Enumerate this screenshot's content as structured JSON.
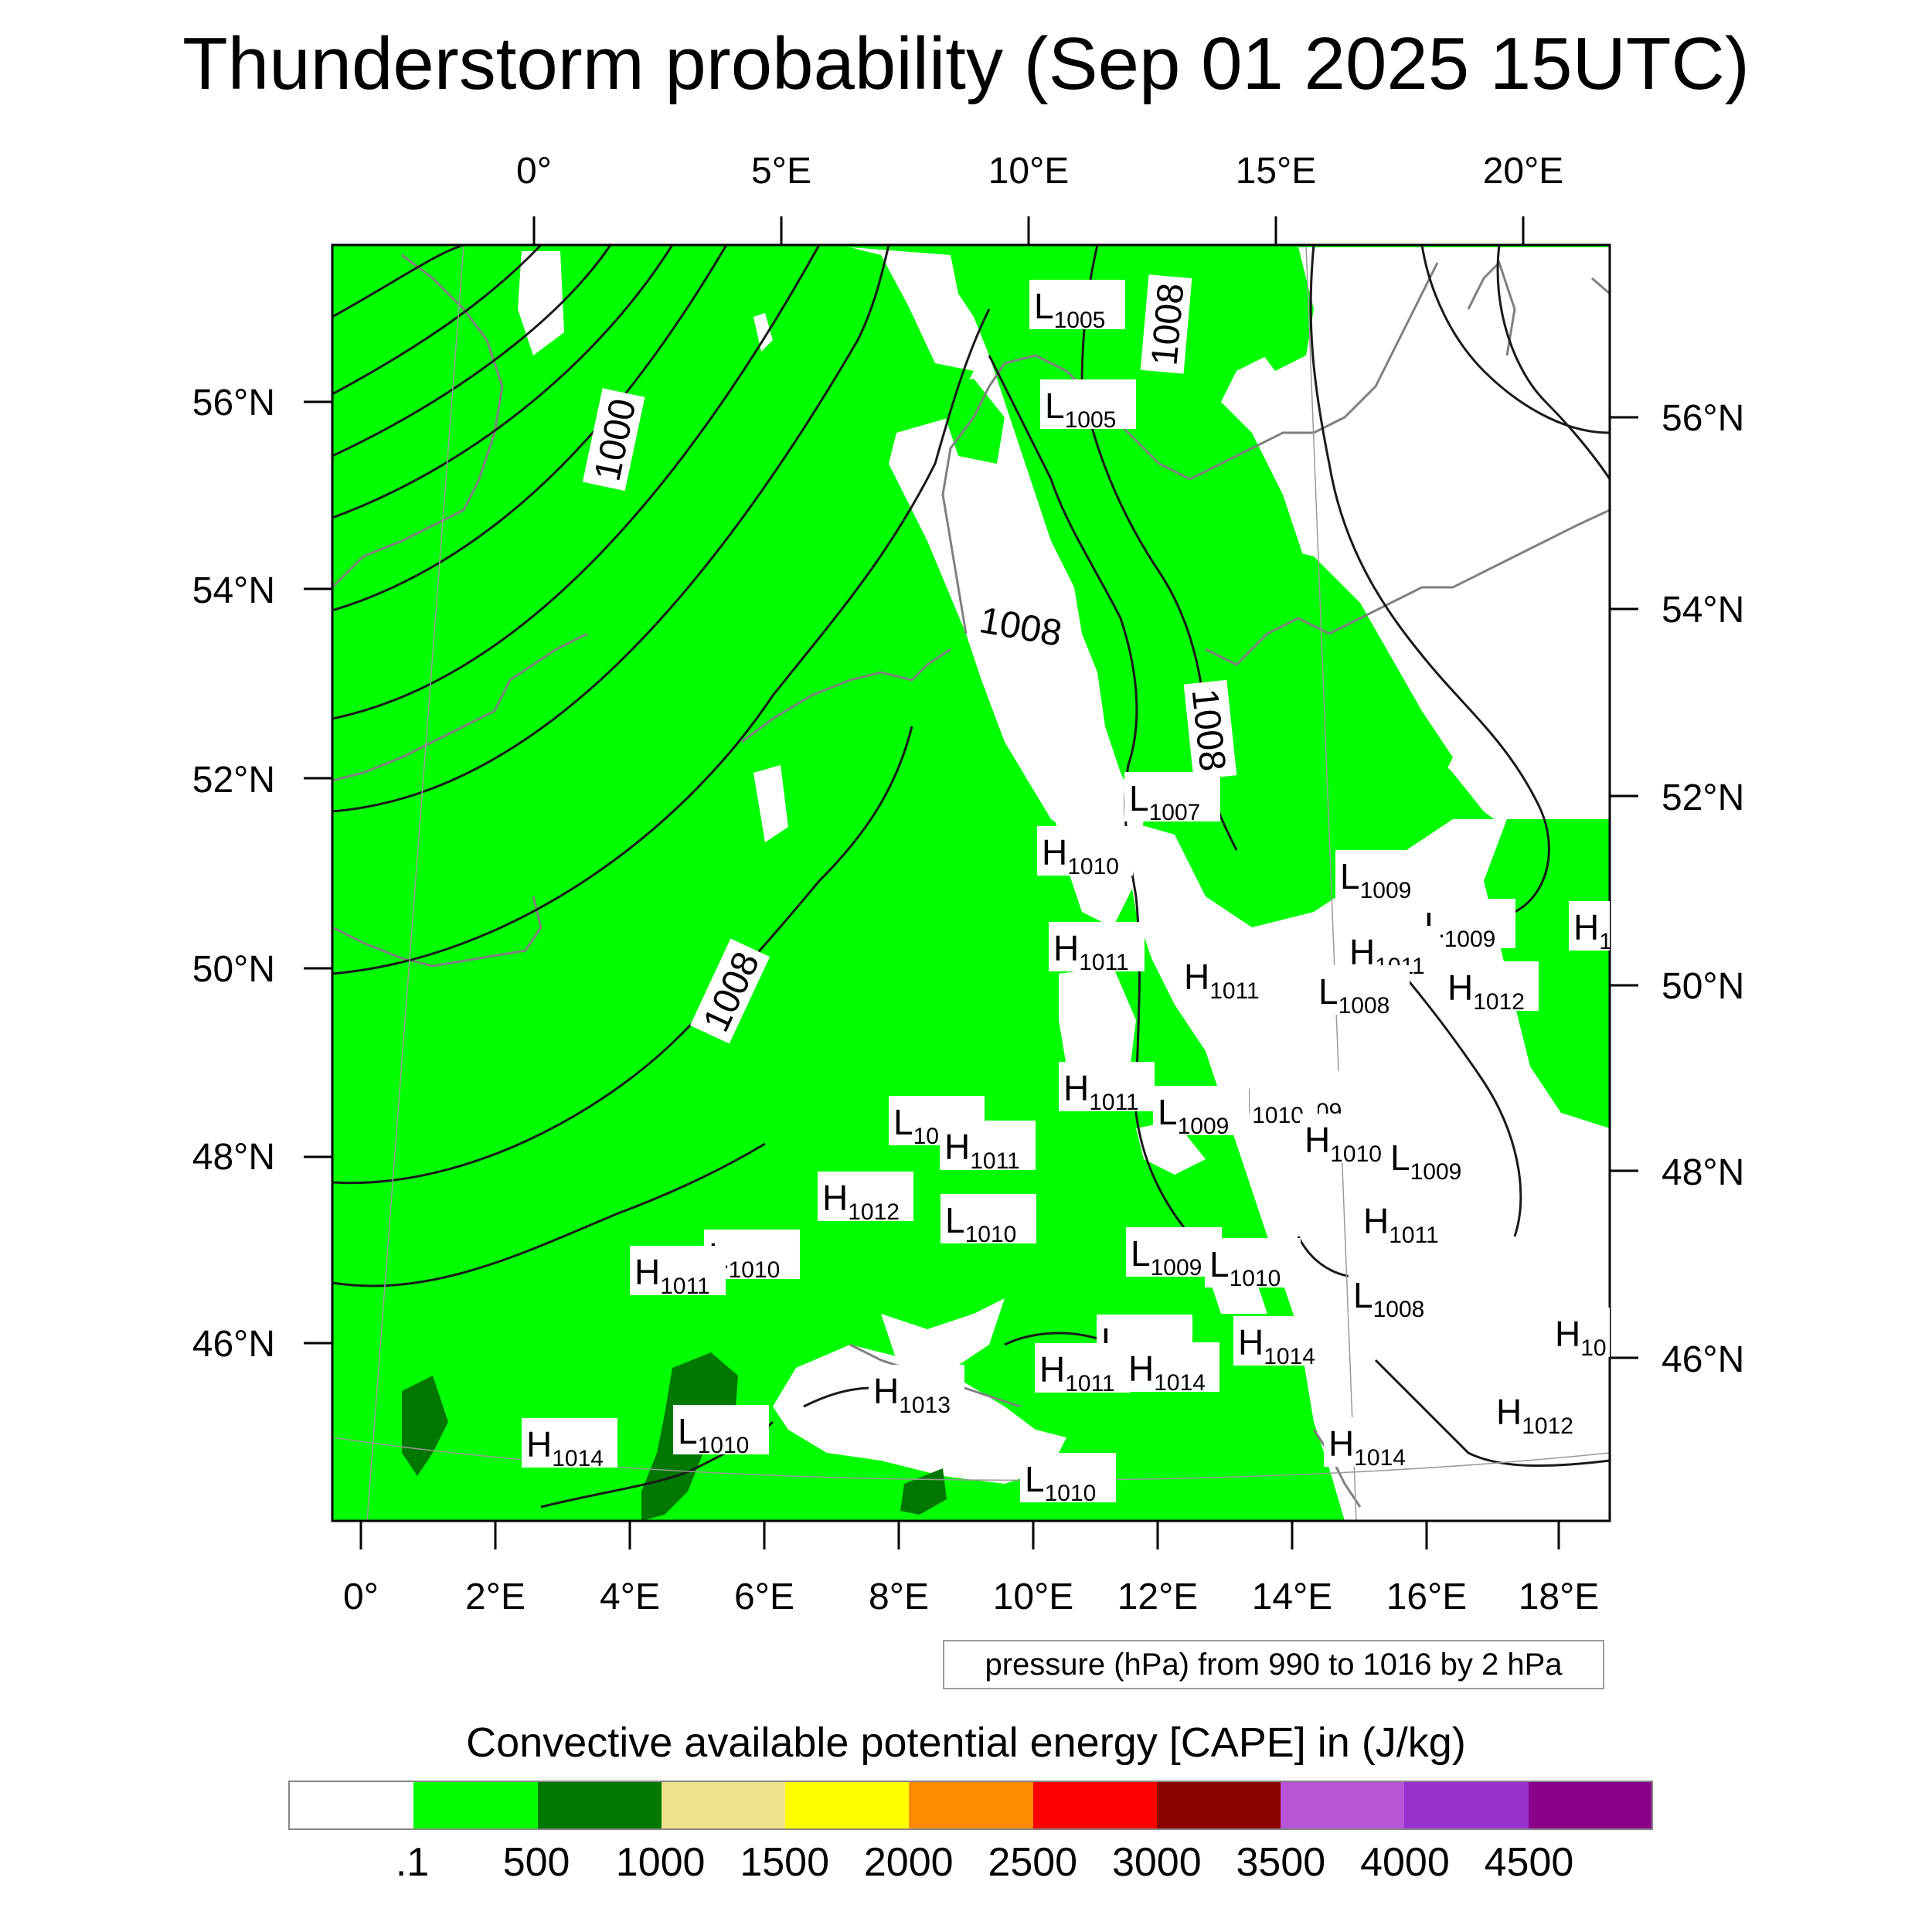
{
  "title": "Thunderstorm probability (Sep 01 2025 15UTC)",
  "pressure_note": "pressure (hPa) from 990 to 1016 by 2 hPa",
  "colorbar": {
    "title": "Convective available potential energy [CAPE] in (J/kg)",
    "colors": [
      "#ffffff",
      "#00ff00",
      "#007800",
      "#f0e28c",
      "#ffff00",
      "#ff8c00",
      "#ff0000",
      "#8b0000",
      "#b856d7",
      "#9932cc",
      "#8b008b"
    ],
    "labels": [
      ".1",
      "500",
      "1000",
      "1500",
      "2000",
      "2500",
      "3000",
      "3500",
      "4000",
      "4500"
    ]
  },
  "axes": {
    "top_lon_labels": [
      "0°",
      "5°E",
      "10°E",
      "15°E",
      "20°E"
    ],
    "bottom_lon_labels": [
      "0°",
      "2°E",
      "4°E",
      "6°E",
      "8°E",
      "10°E",
      "12°E",
      "14°E",
      "16°E",
      "18°E"
    ],
    "left_lat_labels": [
      "56°N",
      "54°N",
      "52°N",
      "50°N",
      "48°N",
      "46°N"
    ],
    "right_lat_labels": [
      "56°N",
      "54°N",
      "52°N",
      "50°N",
      "48°N",
      "46°N"
    ]
  },
  "contour_labels": [
    "1000",
    "1008",
    "1008",
    "1008",
    "1008"
  ],
  "pressure_centers": [
    {
      "type": "L",
      "value": "1005"
    },
    {
      "type": "L",
      "value": "1005"
    },
    {
      "type": "L",
      "value": "1007"
    },
    {
      "type": "H",
      "value": "1010"
    },
    {
      "type": "L",
      "value": "1009"
    },
    {
      "type": "H",
      "value": "1011"
    },
    {
      "type": "L",
      "value": "1009"
    },
    {
      "type": "H",
      "value": "1011"
    },
    {
      "type": "H",
      "value": "1011"
    },
    {
      "type": "L",
      "value": "1008"
    },
    {
      "type": "H",
      "value": "1012"
    },
    {
      "type": "H",
      "value": "10"
    },
    {
      "type": "H",
      "value": "1011"
    },
    {
      "type": "L",
      "value": "1009"
    },
    {
      "type": "H",
      "value": "1010"
    },
    {
      "type": "L",
      "value": "1009"
    },
    {
      "type": "H",
      "value": "1010"
    },
    {
      "type": "L",
      "value": "1009"
    },
    {
      "type": "L",
      "value": "1010"
    },
    {
      "type": "H",
      "value": "1011"
    },
    {
      "type": "H",
      "value": "1012"
    },
    {
      "type": "L",
      "value": "1010"
    },
    {
      "type": "H",
      "value": "1011"
    },
    {
      "type": "L",
      "value": "1010"
    },
    {
      "type": "H",
      "value": "1011"
    },
    {
      "type": "L",
      "value": "1009"
    },
    {
      "type": "L",
      "value": "1010"
    },
    {
      "type": "L",
      "value": "1008"
    },
    {
      "type": "H",
      "value": "1014"
    },
    {
      "type": "L",
      "value": "1010"
    },
    {
      "type": "H",
      "value": "1011"
    },
    {
      "type": "H",
      "value": "1014"
    },
    {
      "type": "H",
      "value": "1013"
    },
    {
      "type": "H",
      "value": "1014"
    },
    {
      "type": "L",
      "value": "1010"
    },
    {
      "type": "H",
      "value": "1012"
    },
    {
      "type": "H",
      "value": "1014"
    },
    {
      "type": "L",
      "value": "1010"
    },
    {
      "type": "H",
      "value": "10"
    }
  ]
}
